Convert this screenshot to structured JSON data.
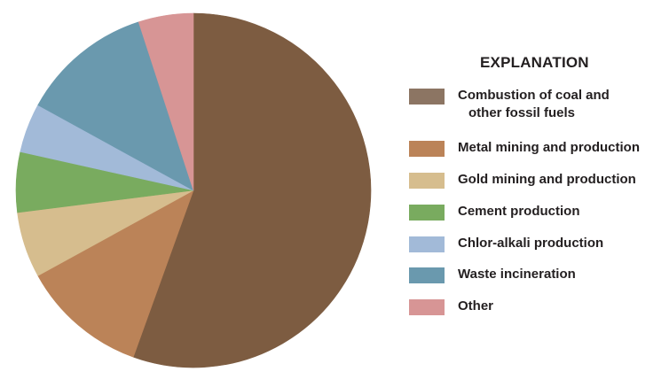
{
  "chart_data": {
    "type": "pie",
    "title": "EXPLANATION",
    "start": "12 o'clock, clockwise",
    "slices": [
      {
        "label_line1": "Combustion of coal and",
        "label_line2": "other fossil fuels",
        "value": 55.5,
        "color": "#7d5c41"
      },
      {
        "label_line1": "Metal mining and production",
        "label_line2": "",
        "value": 11.5,
        "color": "#bb8358"
      },
      {
        "label_line1": "Gold mining and production",
        "label_line2": "",
        "value": 6.0,
        "color": "#d6bd8e"
      },
      {
        "label_line1": "Cement production",
        "label_line2": "",
        "value": 5.5,
        "color": "#79ab5f"
      },
      {
        "label_line1": "Chlor-alkali production",
        "label_line2": "",
        "value": 4.5,
        "color": "#a2bad8"
      },
      {
        "label_line1": "Waste incineration",
        "label_line2": "",
        "value": 12.0,
        "color": "#6a99ae"
      },
      {
        "label_line1": "Other",
        "label_line2": "",
        "value": 5.0,
        "color": "#d79595"
      }
    ],
    "legend_swatch_colors": [
      "#8c7563",
      "#bb8358",
      "#d6bd8e",
      "#79ab5f",
      "#a2bad8",
      "#6a99ae",
      "#d79595"
    ]
  }
}
